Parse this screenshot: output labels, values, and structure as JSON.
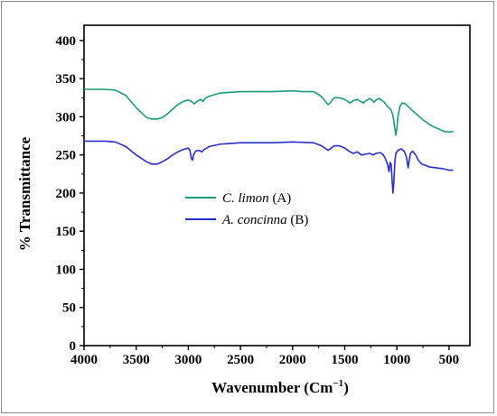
{
  "chart_data": {
    "type": "line",
    "title": "",
    "xlabel": "Wavenumber (Cm",
    "xlabel_sup": "−1",
    "xlabel_close": ")",
    "ylabel": "% Transmittance",
    "xlim": [
      4000,
      300
    ],
    "ylim": [
      0,
      420
    ],
    "x_reversed": true,
    "x_ticks": [
      4000,
      3500,
      3000,
      2500,
      2000,
      1500,
      1000,
      500
    ],
    "y_ticks": [
      0,
      50,
      100,
      150,
      200,
      250,
      300,
      350,
      400
    ],
    "grid": false,
    "legend_position": "center-left",
    "series": [
      {
        "name": "C. limon",
        "name_suffix": "(A)",
        "color": "#1a9c7c",
        "points": [
          [
            4000,
            336
          ],
          [
            3800,
            336
          ],
          [
            3700,
            335
          ],
          [
            3600,
            328
          ],
          [
            3500,
            312
          ],
          [
            3400,
            299
          ],
          [
            3350,
            297
          ],
          [
            3300,
            297
          ],
          [
            3250,
            299
          ],
          [
            3200,
            304
          ],
          [
            3150,
            310
          ],
          [
            3100,
            316
          ],
          [
            3050,
            320
          ],
          [
            3000,
            322
          ],
          [
            2970,
            320
          ],
          [
            2940,
            317
          ],
          [
            2920,
            320
          ],
          [
            2880,
            323
          ],
          [
            2860,
            320
          ],
          [
            2840,
            324
          ],
          [
            2800,
            327
          ],
          [
            2700,
            331
          ],
          [
            2500,
            333
          ],
          [
            2200,
            333
          ],
          [
            2000,
            334
          ],
          [
            1900,
            333
          ],
          [
            1800,
            333
          ],
          [
            1760,
            330
          ],
          [
            1720,
            326
          ],
          [
            1690,
            321
          ],
          [
            1660,
            316
          ],
          [
            1640,
            318
          ],
          [
            1620,
            322
          ],
          [
            1600,
            325
          ],
          [
            1560,
            325
          ],
          [
            1520,
            324
          ],
          [
            1480,
            321
          ],
          [
            1450,
            318
          ],
          [
            1420,
            321
          ],
          [
            1380,
            323
          ],
          [
            1350,
            320
          ],
          [
            1320,
            318
          ],
          [
            1300,
            321
          ],
          [
            1260,
            324
          ],
          [
            1240,
            322
          ],
          [
            1220,
            319
          ],
          [
            1200,
            322
          ],
          [
            1170,
            324
          ],
          [
            1150,
            322
          ],
          [
            1120,
            319
          ],
          [
            1100,
            315
          ],
          [
            1080,
            312
          ],
          [
            1060,
            310
          ],
          [
            1040,
            303
          ],
          [
            1030,
            295
          ],
          [
            1020,
            285
          ],
          [
            1010,
            276
          ],
          [
            1000,
            285
          ],
          [
            990,
            300
          ],
          [
            970,
            314
          ],
          [
            950,
            318
          ],
          [
            920,
            317
          ],
          [
            880,
            312
          ],
          [
            850,
            308
          ],
          [
            800,
            302
          ],
          [
            750,
            296
          ],
          [
            700,
            291
          ],
          [
            650,
            287
          ],
          [
            600,
            284
          ],
          [
            550,
            281
          ],
          [
            500,
            280
          ],
          [
            460,
            281
          ]
        ]
      },
      {
        "name": "A. concinna",
        "name_suffix": "(B)",
        "color": "#2a2ed0",
        "points": [
          [
            4000,
            268
          ],
          [
            3800,
            268
          ],
          [
            3700,
            267
          ],
          [
            3600,
            261
          ],
          [
            3500,
            250
          ],
          [
            3400,
            241
          ],
          [
            3350,
            238
          ],
          [
            3300,
            238
          ],
          [
            3250,
            241
          ],
          [
            3200,
            245
          ],
          [
            3150,
            250
          ],
          [
            3100,
            254
          ],
          [
            3050,
            257
          ],
          [
            3000,
            259
          ],
          [
            2985,
            256
          ],
          [
            2970,
            245
          ],
          [
            2960,
            243
          ],
          [
            2950,
            250
          ],
          [
            2930,
            255
          ],
          [
            2900,
            256
          ],
          [
            2870,
            254
          ],
          [
            2850,
            257
          ],
          [
            2800,
            261
          ],
          [
            2700,
            264
          ],
          [
            2500,
            266
          ],
          [
            2200,
            266
          ],
          [
            2000,
            267
          ],
          [
            1800,
            266
          ],
          [
            1740,
            263
          ],
          [
            1700,
            260
          ],
          [
            1660,
            256
          ],
          [
            1640,
            258
          ],
          [
            1600,
            262
          ],
          [
            1550,
            262
          ],
          [
            1500,
            259
          ],
          [
            1460,
            255
          ],
          [
            1420,
            252
          ],
          [
            1380,
            254
          ],
          [
            1340,
            250
          ],
          [
            1300,
            251
          ],
          [
            1260,
            252
          ],
          [
            1230,
            250
          ],
          [
            1200,
            252
          ],
          [
            1160,
            253
          ],
          [
            1130,
            250
          ],
          [
            1110,
            245
          ],
          [
            1090,
            238
          ],
          [
            1075,
            228
          ],
          [
            1065,
            240
          ],
          [
            1055,
            238
          ],
          [
            1045,
            215
          ],
          [
            1038,
            200
          ],
          [
            1030,
            212
          ],
          [
            1020,
            240
          ],
          [
            1010,
            252
          ],
          [
            990,
            256
          ],
          [
            960,
            258
          ],
          [
            930,
            255
          ],
          [
            910,
            248
          ],
          [
            900,
            240
          ],
          [
            892,
            233
          ],
          [
            885,
            240
          ],
          [
            870,
            252
          ],
          [
            850,
            255
          ],
          [
            820,
            250
          ],
          [
            790,
            242
          ],
          [
            760,
            238
          ],
          [
            720,
            236
          ],
          [
            680,
            234
          ],
          [
            620,
            233
          ],
          [
            560,
            232
          ],
          [
            500,
            230
          ],
          [
            460,
            230
          ]
        ]
      }
    ]
  }
}
